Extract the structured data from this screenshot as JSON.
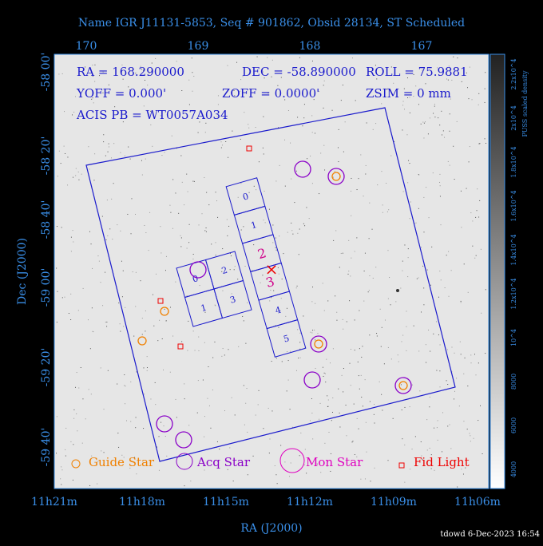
{
  "header": {
    "title": "Name IGR J11131-5853, Seq # 901862, Obsid 28134, ST Scheduled"
  },
  "info": [
    "RA = 168.290000",
    "DEC = -58.890000",
    "ROLL = 75.9881",
    "YOFF =    0.000'",
    "ZOFF =  0.0000'",
    "ZSIM = 0 mm",
    "ACIS PB = WT0057A034"
  ],
  "axes": {
    "top_ticks": [
      "170",
      "169",
      "168",
      "167"
    ],
    "bottom_ticks": [
      "11h21m",
      "11h18m",
      "11h15m",
      "11h12m",
      "11h09m",
      "11h06m"
    ],
    "left_ticks": [
      "-58 00'",
      "-58 20'",
      "-58 40'",
      "-59 00'",
      "-59 20'",
      "-59 40'"
    ],
    "x_label": "RA (J2000)",
    "y_label": "Dec (J2000)"
  },
  "colorbar": {
    "ticks": [
      "4000",
      "6000",
      "8000",
      "10^4",
      "1.2x10^4",
      "1.4x10^4",
      "1.6x10^4",
      "1.8x10^4",
      "2x10^4",
      "2.2x10^4"
    ],
    "label": "PUSS scaled density"
  },
  "chips": {
    "acis_i": [
      "0",
      "2",
      "1",
      "3"
    ],
    "acis_s": [
      "0",
      "1",
      "2",
      "3",
      "4",
      "5"
    ]
  },
  "legend": [
    "Guide Star",
    "Acq Star",
    "Mon Star",
    "Fid Light"
  ],
  "footer": "tdowd  6-Dec-2023 16:54"
}
